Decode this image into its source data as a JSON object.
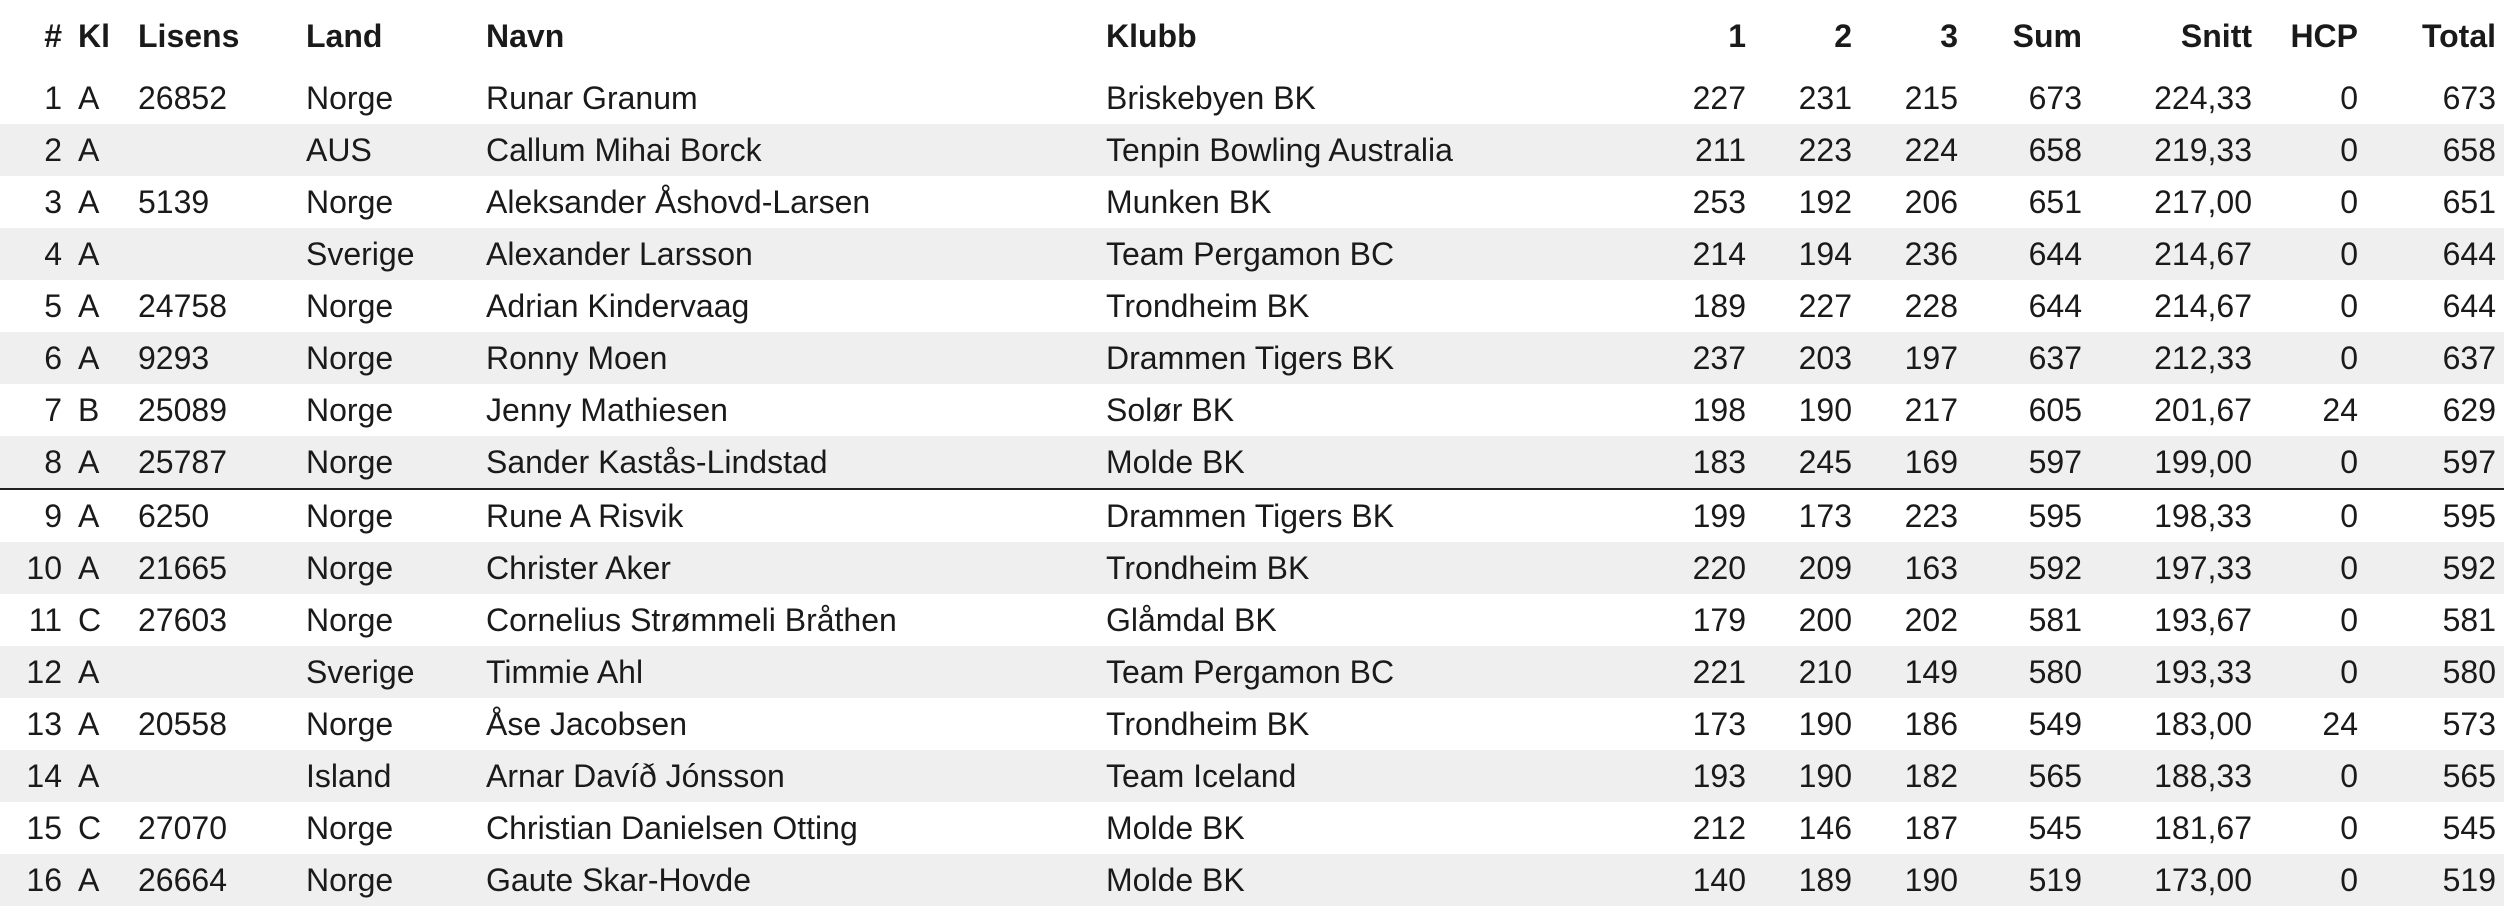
{
  "columns": {
    "rank": "#",
    "klasse": "Kl",
    "lisens": "Lisens",
    "land": "Land",
    "navn": "Navn",
    "klubb": "Klubb",
    "s1": "1",
    "s2": "2",
    "s3": "3",
    "sum": "Sum",
    "snitt": "Snitt",
    "hcp": "HCP",
    "total": "Total"
  },
  "rows": [
    {
      "rank": "1",
      "klasse": "A",
      "lisens": "26852",
      "land": "Norge",
      "navn": "Runar Granum",
      "klubb": "Briskebyen BK",
      "s1": "227",
      "s2": "231",
      "s3": "215",
      "sum": "673",
      "snitt": "224,33",
      "hcp": "0",
      "total": "673"
    },
    {
      "rank": "2",
      "klasse": "A",
      "lisens": "",
      "land": "AUS",
      "navn": "Callum Mihai Borck",
      "klubb": "Tenpin Bowling Australia",
      "s1": "211",
      "s2": "223",
      "s3": "224",
      "sum": "658",
      "snitt": "219,33",
      "hcp": "0",
      "total": "658"
    },
    {
      "rank": "3",
      "klasse": "A",
      "lisens": "5139",
      "land": "Norge",
      "navn": "Aleksander Åshovd-Larsen",
      "klubb": "Munken BK",
      "s1": "253",
      "s2": "192",
      "s3": "206",
      "sum": "651",
      "snitt": "217,00",
      "hcp": "0",
      "total": "651"
    },
    {
      "rank": "4",
      "klasse": "A",
      "lisens": "",
      "land": "Sverige",
      "navn": "Alexander Larsson",
      "klubb": "Team Pergamon BC",
      "s1": "214",
      "s2": "194",
      "s3": "236",
      "sum": "644",
      "snitt": "214,67",
      "hcp": "0",
      "total": "644"
    },
    {
      "rank": "5",
      "klasse": "A",
      "lisens": "24758",
      "land": "Norge",
      "navn": "Adrian Kindervaag",
      "klubb": "Trondheim BK",
      "s1": "189",
      "s2": "227",
      "s3": "228",
      "sum": "644",
      "snitt": "214,67",
      "hcp": "0",
      "total": "644"
    },
    {
      "rank": "6",
      "klasse": "A",
      "lisens": "9293",
      "land": "Norge",
      "navn": "Ronny Moen",
      "klubb": "Drammen Tigers BK",
      "s1": "237",
      "s2": "203",
      "s3": "197",
      "sum": "637",
      "snitt": "212,33",
      "hcp": "0",
      "total": "637"
    },
    {
      "rank": "7",
      "klasse": "B",
      "lisens": "25089",
      "land": "Norge",
      "navn": "Jenny Mathiesen",
      "klubb": "Solør BK",
      "s1": "198",
      "s2": "190",
      "s3": "217",
      "sum": "605",
      "snitt": "201,67",
      "hcp": "24",
      "total": "629"
    },
    {
      "rank": "8",
      "klasse": "A",
      "lisens": "25787",
      "land": "Norge",
      "navn": "Sander Kastås-Lindstad",
      "klubb": "Molde BK",
      "s1": "183",
      "s2": "245",
      "s3": "169",
      "sum": "597",
      "snitt": "199,00",
      "hcp": "0",
      "total": "597"
    },
    {
      "rank": "9",
      "klasse": "A",
      "lisens": "6250",
      "land": "Norge",
      "navn": "Rune A Risvik",
      "klubb": "Drammen Tigers BK",
      "s1": "199",
      "s2": "173",
      "s3": "223",
      "sum": "595",
      "snitt": "198,33",
      "hcp": "0",
      "total": "595"
    },
    {
      "rank": "10",
      "klasse": "A",
      "lisens": "21665",
      "land": "Norge",
      "navn": "Christer Aker",
      "klubb": "Trondheim BK",
      "s1": "220",
      "s2": "209",
      "s3": "163",
      "sum": "592",
      "snitt": "197,33",
      "hcp": "0",
      "total": "592"
    },
    {
      "rank": "11",
      "klasse": "C",
      "lisens": "27603",
      "land": "Norge",
      "navn": "Cornelius Strømmeli Bråthen",
      "klubb": "Glåmdal BK",
      "s1": "179",
      "s2": "200",
      "s3": "202",
      "sum": "581",
      "snitt": "193,67",
      "hcp": "0",
      "total": "581"
    },
    {
      "rank": "12",
      "klasse": "A",
      "lisens": "",
      "land": "Sverige",
      "navn": "Timmie Ahl",
      "klubb": "Team Pergamon BC",
      "s1": "221",
      "s2": "210",
      "s3": "149",
      "sum": "580",
      "snitt": "193,33",
      "hcp": "0",
      "total": "580"
    },
    {
      "rank": "13",
      "klasse": "A",
      "lisens": "20558",
      "land": "Norge",
      "navn": "Åse Jacobsen",
      "klubb": "Trondheim BK",
      "s1": "173",
      "s2": "190",
      "s3": "186",
      "sum": "549",
      "snitt": "183,00",
      "hcp": "24",
      "total": "573"
    },
    {
      "rank": "14",
      "klasse": "A",
      "lisens": "",
      "land": "Island",
      "navn": "Arnar Davíð Jónsson",
      "klubb": "Team Iceland",
      "s1": "193",
      "s2": "190",
      "s3": "182",
      "sum": "565",
      "snitt": "188,33",
      "hcp": "0",
      "total": "565"
    },
    {
      "rank": "15",
      "klasse": "C",
      "lisens": "27070",
      "land": "Norge",
      "navn": "Christian Danielsen Otting",
      "klubb": "Molde BK",
      "s1": "212",
      "s2": "146",
      "s3": "187",
      "sum": "545",
      "snitt": "181,67",
      "hcp": "0",
      "total": "545"
    },
    {
      "rank": "16",
      "klasse": "A",
      "lisens": "26664",
      "land": "Norge",
      "navn": "Gaute Skar-Hovde",
      "klubb": "Molde BK",
      "s1": "140",
      "s2": "189",
      "s3": "190",
      "sum": "519",
      "snitt": "173,00",
      "hcp": "0",
      "total": "519"
    }
  ],
  "cutline_after_rank": "8",
  "colors": {
    "stripe": "#efefef",
    "cutline": "#222222",
    "text": "#1a1a1a"
  }
}
